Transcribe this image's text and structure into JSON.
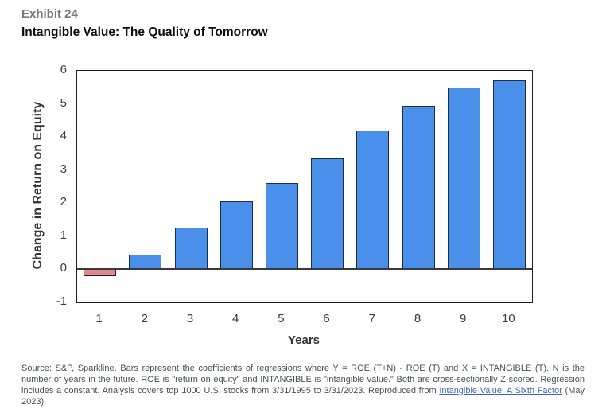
{
  "header": {
    "exhibit_label": "Exhibit 24",
    "title": "Intangible Value: The Quality of Tomorrow"
  },
  "chart_data": {
    "type": "bar",
    "title": "Intangible Value: The Quality of Tomorrow",
    "categories": [
      "1",
      "2",
      "3",
      "4",
      "5",
      "6",
      "7",
      "8",
      "9",
      "10"
    ],
    "values": [
      -0.2,
      0.45,
      1.25,
      2.05,
      2.6,
      3.35,
      4.2,
      4.95,
      5.5,
      5.7
    ],
    "xlabel": "Years",
    "ylabel": "Change in Return on Equity",
    "ylim": [
      -1,
      6
    ],
    "ytick_step": 1,
    "grid": false,
    "legend": "none",
    "colors": {
      "positive_fill": "#4a90ea",
      "positive_border": "#1d2d44",
      "negative_fill": "#dd8a92",
      "negative_border": "#33161a",
      "frame": "#1f1f1f",
      "zero_line": "#3a3a3a"
    }
  },
  "footer": {
    "text_before_link": "Source: S&P, Sparkline. Bars represent the coefficients of regressions where Y = ROE (T+N) - ROE (T) and X = INTANGIBLE (T). N is the number of years in the future. ROE is \"return on equity\" and INTANGIBLE is \"intangible value.\" Both are cross-sectionally Z-scored. Regression includes a constant. Analysis covers top 1000 U.S. stocks from 3/31/1995 to 3/31/2023. Reproduced from ",
    "link_text": "Intangible Value: A Sixth Factor",
    "text_after_link": " (May 2023).",
    "link_color": "#3b66c4"
  }
}
